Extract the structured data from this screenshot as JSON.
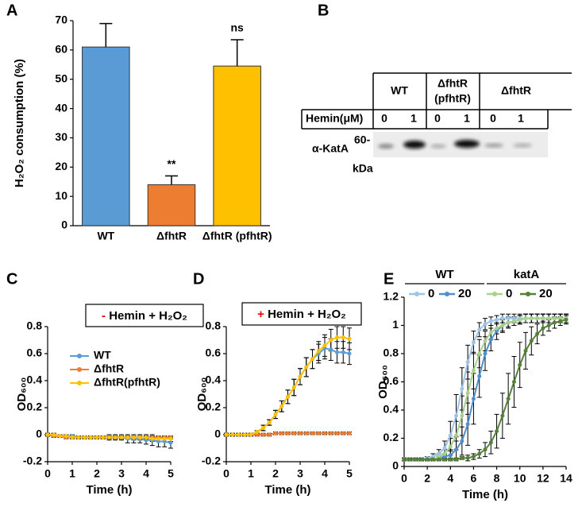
{
  "blot": {
    "panel": "B",
    "groups": [
      "WT",
      [
        "ΔfhtR",
        "(pfhtR)"
      ],
      "ΔfhtR"
    ],
    "row_label": "Hemin(μM)",
    "lanes": [
      "0",
      "1",
      "0",
      "1",
      "0",
      "1"
    ],
    "antibody": "α-KatA",
    "marker": "60-",
    "unit": "kDa"
  },
  "chart_data": [
    {
      "type": "bar",
      "panel": "A",
      "ylabel": "H₂O₂ consumption (%)",
      "categories": [
        "WT",
        "ΔfhtR",
        "ΔfhtR (pfhtR)"
      ],
      "values": [
        61,
        14,
        54.5
      ],
      "errors": [
        8,
        3,
        9
      ],
      "significance": [
        null,
        "**",
        "ns"
      ],
      "colors": [
        "#5b9bd5",
        "#ed7d31",
        "#ffc000"
      ],
      "ylim": [
        0,
        70
      ],
      "yticks": [
        0,
        10,
        20,
        30,
        40,
        50,
        60,
        70
      ],
      "grid": false
    },
    {
      "type": "line",
      "panel": "C",
      "condition_sign": "-",
      "condition": "Hemin + H₂O₂",
      "xlabel": "Time (h)",
      "ylabel": "OD₆₀₀",
      "legend": true,
      "xlim": [
        0,
        5
      ],
      "xticks": [
        0,
        1,
        2,
        3,
        4,
        5
      ],
      "ylim": [
        -0.2,
        0.8
      ],
      "yticks": [
        -0.2,
        0,
        0.2,
        0.4,
        0.6,
        0.8
      ],
      "x": [
        0,
        0.25,
        0.5,
        0.75,
        1,
        1.25,
        1.5,
        1.75,
        2,
        2.25,
        2.5,
        2.75,
        3,
        3.25,
        3.5,
        3.75,
        4,
        4.25,
        4.5,
        4.75,
        5
      ],
      "series": [
        {
          "name": "WT",
          "color": "#5b9bd5",
          "values": [
            0,
            0,
            -0.01,
            -0.01,
            -0.01,
            -0.02,
            -0.02,
            -0.02,
            -0.02,
            -0.02,
            -0.02,
            -0.02,
            -0.02,
            -0.03,
            -0.03,
            -0.03,
            -0.04,
            -0.04,
            -0.05,
            -0.05,
            -0.06
          ],
          "errors": [
            0.01,
            0.01,
            0.01,
            0.01,
            0.01,
            0.01,
            0.01,
            0.01,
            0.01,
            0.01,
            0.02,
            0.02,
            0.02,
            0.03,
            0.03,
            0.03,
            0.03,
            0.04,
            0.04,
            0.04,
            0.04
          ]
        },
        {
          "name": "ΔfhtR",
          "color": "#ed7d31",
          "values": [
            0,
            -0.01,
            -0.01,
            -0.02,
            -0.02,
            -0.02,
            -0.02,
            -0.02,
            -0.02,
            -0.02,
            -0.02,
            -0.02,
            -0.02,
            -0.02,
            -0.02,
            -0.02,
            -0.02,
            -0.02,
            -0.02,
            -0.02,
            -0.02
          ],
          "errors": [
            0.01,
            0.01,
            0.01,
            0.01,
            0.01,
            0.01,
            0.01,
            0.01,
            0.01,
            0.01,
            0.01,
            0.01,
            0.01,
            0.01,
            0.01,
            0.01,
            0.01,
            0.01,
            0.01,
            0.01,
            0.01
          ]
        },
        {
          "name": "ΔfhtR(pfhtR)",
          "color": "#ffc000",
          "values": [
            0,
            0,
            -0.01,
            -0.01,
            -0.02,
            -0.02,
            -0.02,
            -0.02,
            -0.02,
            -0.02,
            -0.02,
            -0.02,
            -0.02,
            -0.02,
            -0.02,
            -0.02,
            -0.02,
            -0.03,
            -0.03,
            -0.03,
            -0.03
          ],
          "errors": [
            0.01,
            0.01,
            0.01,
            0.01,
            0.01,
            0.01,
            0.01,
            0.01,
            0.01,
            0.01,
            0.01,
            0.01,
            0.01,
            0.01,
            0.02,
            0.02,
            0.02,
            0.02,
            0.02,
            0.02,
            0.02
          ]
        }
      ]
    },
    {
      "type": "line",
      "panel": "D",
      "condition_sign": "+",
      "condition": "Hemin + H₂O₂",
      "xlabel": "Time (h)",
      "ylabel": "OD₆₀₀",
      "legend": false,
      "xlim": [
        0,
        5
      ],
      "xticks": [
        0,
        1,
        2,
        3,
        4,
        5
      ],
      "ylim": [
        -0.2,
        0.8
      ],
      "yticks": [
        -0.2,
        0,
        0.2,
        0.4,
        0.6,
        0.8
      ],
      "x": [
        0,
        0.25,
        0.5,
        0.75,
        1,
        1.25,
        1.5,
        1.75,
        2,
        2.25,
        2.5,
        2.75,
        3,
        3.25,
        3.5,
        3.75,
        4,
        4.25,
        4.5,
        4.75,
        5
      ],
      "series": [
        {
          "color": "#5b9bd5",
          "values": [
            0,
            0,
            0,
            0,
            0,
            0.02,
            0.05,
            0.09,
            0.15,
            0.21,
            0.28,
            0.35,
            0.43,
            0.5,
            0.56,
            0.6,
            0.64,
            0.63,
            0.61,
            0.61,
            0.6
          ],
          "errors": [
            0.01,
            0.01,
            0.01,
            0.01,
            0.01,
            0.01,
            0.02,
            0.02,
            0.03,
            0.04,
            0.05,
            0.06,
            0.06,
            0.07,
            0.07,
            0.07,
            0.08,
            0.08,
            0.08,
            0.08,
            0.08
          ]
        },
        {
          "color": "#ed7d31",
          "values": [
            0,
            0,
            0,
            0,
            0,
            0,
            0,
            0,
            0.01,
            0.01,
            0.01,
            0.01,
            0.01,
            0.01,
            0.01,
            0.01,
            0.01,
            0.01,
            0.01,
            0.01,
            0.01
          ],
          "errors": [
            0.01,
            0.01,
            0.01,
            0.01,
            0.01,
            0.01,
            0.01,
            0.01,
            0.01,
            0.01,
            0.01,
            0.01,
            0.01,
            0.01,
            0.01,
            0.01,
            0.01,
            0.01,
            0.01,
            0.01,
            0.01
          ]
        },
        {
          "color": "#ffc000",
          "values": [
            0,
            0,
            0,
            0,
            0,
            0.02,
            0.05,
            0.09,
            0.15,
            0.21,
            0.28,
            0.35,
            0.43,
            0.5,
            0.56,
            0.62,
            0.66,
            0.7,
            0.72,
            0.72,
            0.71
          ],
          "errors": [
            0.01,
            0.01,
            0.01,
            0.01,
            0.01,
            0.01,
            0.02,
            0.02,
            0.03,
            0.04,
            0.05,
            0.06,
            0.06,
            0.07,
            0.07,
            0.07,
            0.08,
            0.08,
            0.08,
            0.08,
            0.08
          ]
        }
      ]
    },
    {
      "type": "line",
      "panel": "E",
      "xlabel": "Time (h)",
      "ylabel": "OD₆₀₀",
      "legend": true,
      "legend_groups": [
        "WT",
        "katA"
      ],
      "xlim": [
        0,
        14
      ],
      "xticks": [
        0,
        2,
        4,
        6,
        8,
        10,
        12,
        14
      ],
      "ylim": [
        0,
        1.2
      ],
      "yticks": [
        0,
        0.2,
        0.4,
        0.6,
        0.8,
        1,
        1.2
      ],
      "x": [
        0,
        0.5,
        1,
        1.5,
        2,
        2.5,
        3,
        3.5,
        4,
        4.5,
        5,
        5.5,
        6,
        6.5,
        7,
        7.5,
        8,
        8.5,
        9,
        9.5,
        10,
        10.5,
        11,
        11.5,
        12,
        12.5,
        13,
        13.5,
        14
      ],
      "series": [
        {
          "name": "0",
          "color": "#9dc3e6",
          "values": [
            0.05,
            0.05,
            0.05,
            0.05,
            0.06,
            0.07,
            0.09,
            0.13,
            0.22,
            0.36,
            0.55,
            0.74,
            0.88,
            0.97,
            1.01,
            1.03,
            1.04,
            1.05,
            1.05,
            1.05,
            1.05,
            1.05,
            1.05,
            1.05,
            1.05,
            1.05,
            1.05,
            1.05,
            1.05
          ],
          "errors": [
            0.01,
            0.01,
            0.01,
            0.01,
            0.01,
            0.02,
            0.03,
            0.05,
            0.1,
            0.15,
            0.15,
            0.12,
            0.08,
            0.05,
            0.04,
            0.03,
            0.03,
            0.03,
            0.03,
            0.03,
            0.03,
            0.03,
            0.03,
            0.03,
            0.03,
            0.03,
            0.03,
            0.03,
            0.03
          ]
        },
        {
          "name": "20",
          "color": "#4f8fd0",
          "values": [
            0.05,
            0.05,
            0.05,
            0.05,
            0.05,
            0.05,
            0.06,
            0.07,
            0.08,
            0.12,
            0.18,
            0.3,
            0.48,
            0.64,
            0.8,
            0.9,
            0.96,
            1.0,
            1.02,
            1.03,
            1.04,
            1.05,
            1.05,
            1.05,
            1.05,
            1.05,
            1.05,
            1.05,
            1.05
          ],
          "errors": [
            0.01,
            0.01,
            0.01,
            0.01,
            0.01,
            0.01,
            0.01,
            0.02,
            0.03,
            0.06,
            0.1,
            0.15,
            0.18,
            0.15,
            0.12,
            0.08,
            0.06,
            0.05,
            0.04,
            0.03,
            0.03,
            0.03,
            0.03,
            0.03,
            0.03,
            0.03,
            0.03,
            0.03,
            0.03
          ]
        },
        {
          "name": "0",
          "color": "#a9d18e",
          "values": [
            0.05,
            0.05,
            0.05,
            0.05,
            0.05,
            0.05,
            0.07,
            0.09,
            0.14,
            0.22,
            0.36,
            0.52,
            0.68,
            0.8,
            0.89,
            0.95,
            0.98,
            1.0,
            1.02,
            1.03,
            1.04,
            1.05,
            1.05,
            1.05,
            1.05,
            1.05,
            1.05,
            1.05,
            1.05
          ],
          "errors": [
            0.01,
            0.01,
            0.01,
            0.01,
            0.01,
            0.01,
            0.02,
            0.03,
            0.06,
            0.1,
            0.14,
            0.15,
            0.13,
            0.1,
            0.07,
            0.05,
            0.04,
            0.04,
            0.03,
            0.03,
            0.03,
            0.03,
            0.03,
            0.03,
            0.03,
            0.03,
            0.03,
            0.03,
            0.03
          ]
        },
        {
          "name": "20",
          "color": "#548235",
          "values": [
            0.05,
            0.05,
            0.05,
            0.05,
            0.05,
            0.05,
            0.05,
            0.05,
            0.05,
            0.05,
            0.06,
            0.06,
            0.07,
            0.09,
            0.12,
            0.17,
            0.25,
            0.36,
            0.48,
            0.6,
            0.72,
            0.82,
            0.89,
            0.94,
            0.98,
            1.0,
            1.02,
            1.03,
            1.04
          ],
          "errors": [
            0.01,
            0.01,
            0.01,
            0.01,
            0.01,
            0.01,
            0.01,
            0.01,
            0.01,
            0.01,
            0.01,
            0.02,
            0.02,
            0.03,
            0.05,
            0.08,
            0.12,
            0.16,
            0.18,
            0.18,
            0.16,
            0.13,
            0.1,
            0.07,
            0.05,
            0.04,
            0.04,
            0.03,
            0.03
          ]
        }
      ]
    }
  ]
}
